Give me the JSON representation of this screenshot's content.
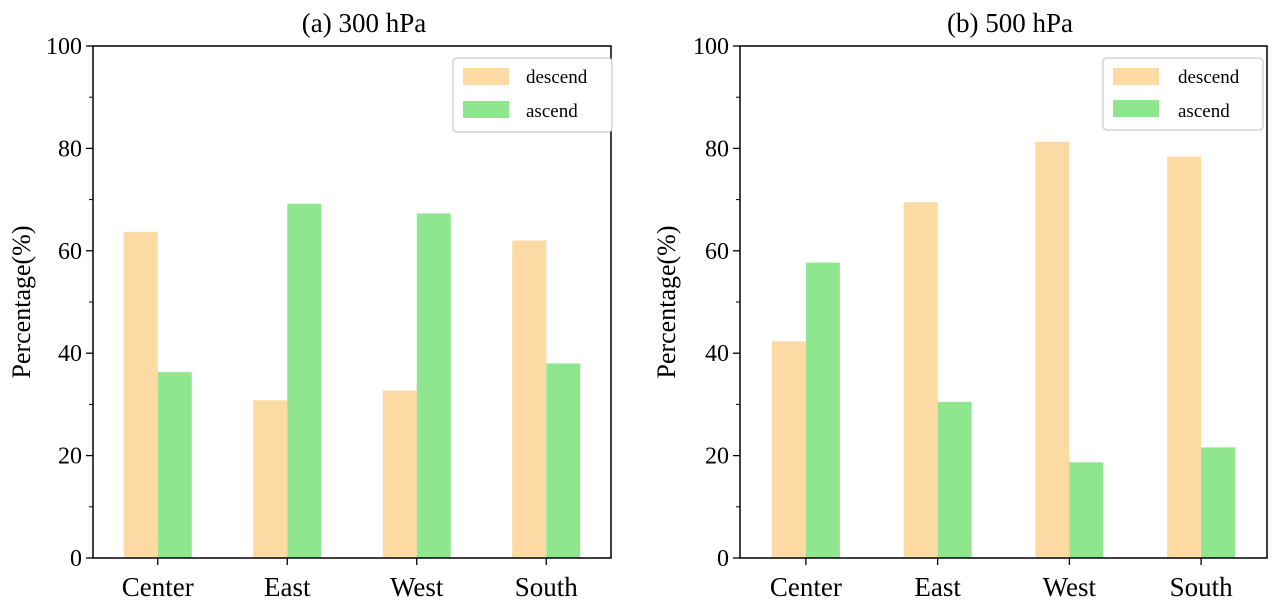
{
  "chart_data": [
    {
      "type": "bar",
      "title": "(a) 300 hPa",
      "categories": [
        "Center",
        "East",
        "West",
        "South"
      ],
      "series": [
        {
          "name": "descend",
          "values": [
            63.7,
            30.8,
            32.7,
            62.0
          ],
          "color": "#fdd9a4"
        },
        {
          "name": "ascend",
          "values": [
            36.3,
            69.2,
            67.3,
            38.0
          ],
          "color": "#90e68f"
        }
      ],
      "xlabel": "",
      "ylabel": "Percentage(%)",
      "ylim": [
        0,
        100
      ],
      "yticks": [
        0,
        20,
        40,
        60,
        80,
        100
      ],
      "ytick_labels": [
        "0",
        "20",
        "40",
        "60",
        "80",
        "100"
      ],
      "grid": false,
      "legend_position": "top-right"
    },
    {
      "type": "bar",
      "title": "(b) 500 hPa",
      "categories": [
        "Center",
        "East",
        "West",
        "South"
      ],
      "series": [
        {
          "name": "descend",
          "values": [
            42.3,
            69.5,
            81.3,
            78.4
          ],
          "color": "#fdd9a4"
        },
        {
          "name": "ascend",
          "values": [
            57.7,
            30.5,
            18.7,
            21.6
          ],
          "color": "#90e68f"
        }
      ],
      "xlabel": "",
      "ylabel": "Percentage(%)",
      "ylim": [
        0,
        100
      ],
      "yticks": [
        0,
        20,
        40,
        60,
        80,
        100
      ],
      "ytick_labels": [
        "0",
        "20",
        "40",
        "60",
        "80",
        "100"
      ],
      "grid": false,
      "legend_position": "top-right"
    }
  ]
}
